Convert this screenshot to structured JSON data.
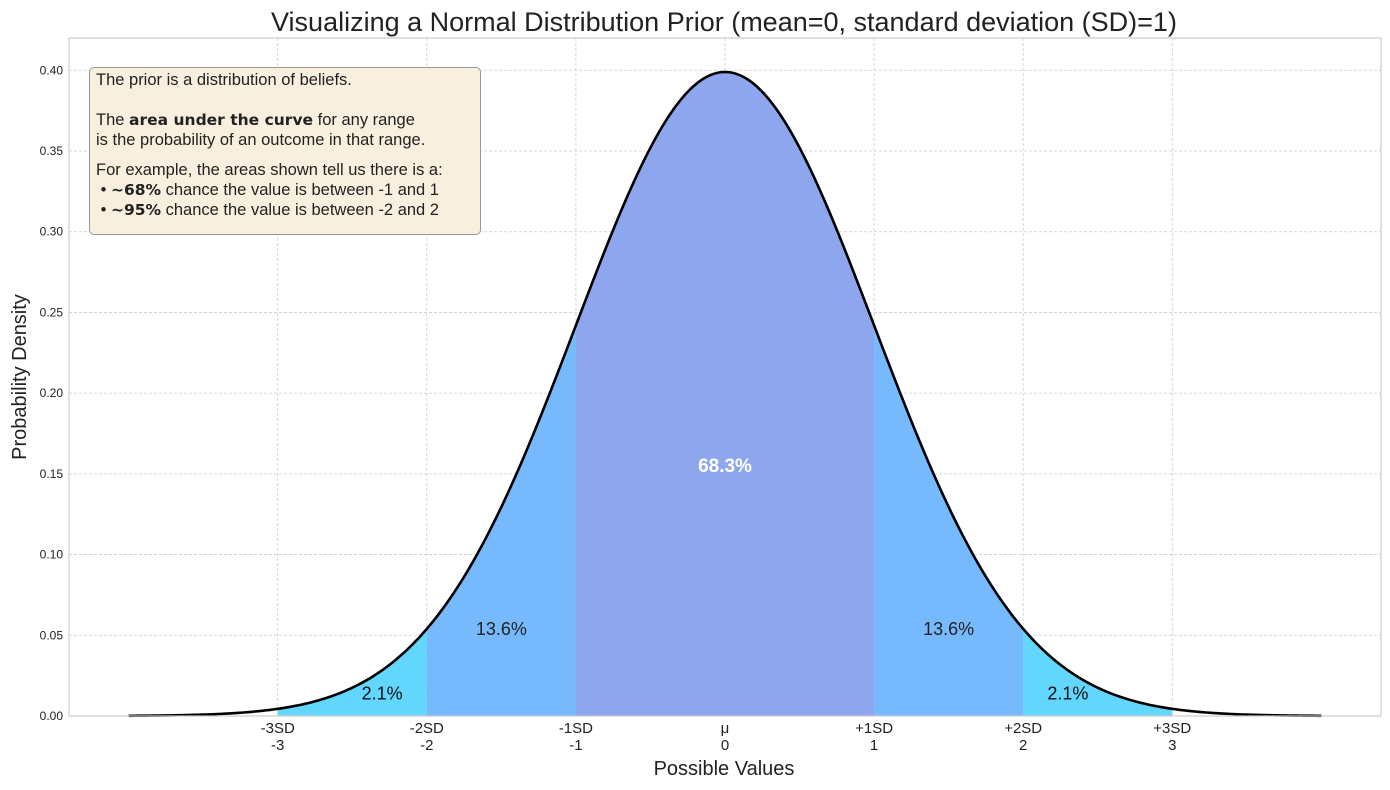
{
  "chart_data": {
    "type": "area",
    "title": "Visualizing a Normal Distribution Prior (mean=0, standard deviation (SD)=1)",
    "xlabel": "Possible Values",
    "ylabel": "Probability Density",
    "distribution": {
      "mean": 0,
      "sd": 1
    },
    "x_range_curve": [
      -4,
      4
    ],
    "xlim": [
      -4.4,
      4.4
    ],
    "ylim": [
      0,
      0.42
    ],
    "grid": true,
    "x_ticks": [
      {
        "value": -3,
        "label_top": "-3SD",
        "label_bottom": "-3"
      },
      {
        "value": -2,
        "label_top": "-2SD",
        "label_bottom": "-2"
      },
      {
        "value": -1,
        "label_top": "-1SD",
        "label_bottom": "-1"
      },
      {
        "value": 0,
        "label_top": "μ",
        "label_bottom": "0"
      },
      {
        "value": 1,
        "label_top": "+1SD",
        "label_bottom": "1"
      },
      {
        "value": 2,
        "label_top": "+2SD",
        "label_bottom": "2"
      },
      {
        "value": 3,
        "label_top": "+3SD",
        "label_bottom": "3"
      }
    ],
    "y_ticks": [
      "0.00",
      "0.05",
      "0.10",
      "0.15",
      "0.20",
      "0.25",
      "0.30",
      "0.35",
      "0.40"
    ],
    "regions": [
      {
        "from": -3,
        "to": -2,
        "color": "#62d6fc",
        "label": "2.1%"
      },
      {
        "from": -2,
        "to": -1,
        "color": "#77b9fd",
        "label": "13.6%"
      },
      {
        "from": -1,
        "to": 1,
        "color": "#8ea6ee",
        "label": "68.3%"
      },
      {
        "from": 1,
        "to": 2,
        "color": "#77b9fd",
        "label": "13.6%"
      },
      {
        "from": 2,
        "to": 3,
        "color": "#62d6fc",
        "label": "2.1%"
      }
    ],
    "curve_color": "#000000"
  },
  "infobox": {
    "line1": "The prior is a distribution of beliefs.",
    "line2_pre": "The ",
    "line2_bold": "area under the curve",
    "line2_post": " for any range",
    "line3": "is the probability of an outcome in that range.",
    "line4": "For example, the areas shown tell us there is a:",
    "bullet1_bold": "~68%",
    "bullet1_text": " chance the value is between -1 and 1",
    "bullet2_bold": "~95%",
    "bullet2_text": " chance the value is between -2 and 2"
  }
}
